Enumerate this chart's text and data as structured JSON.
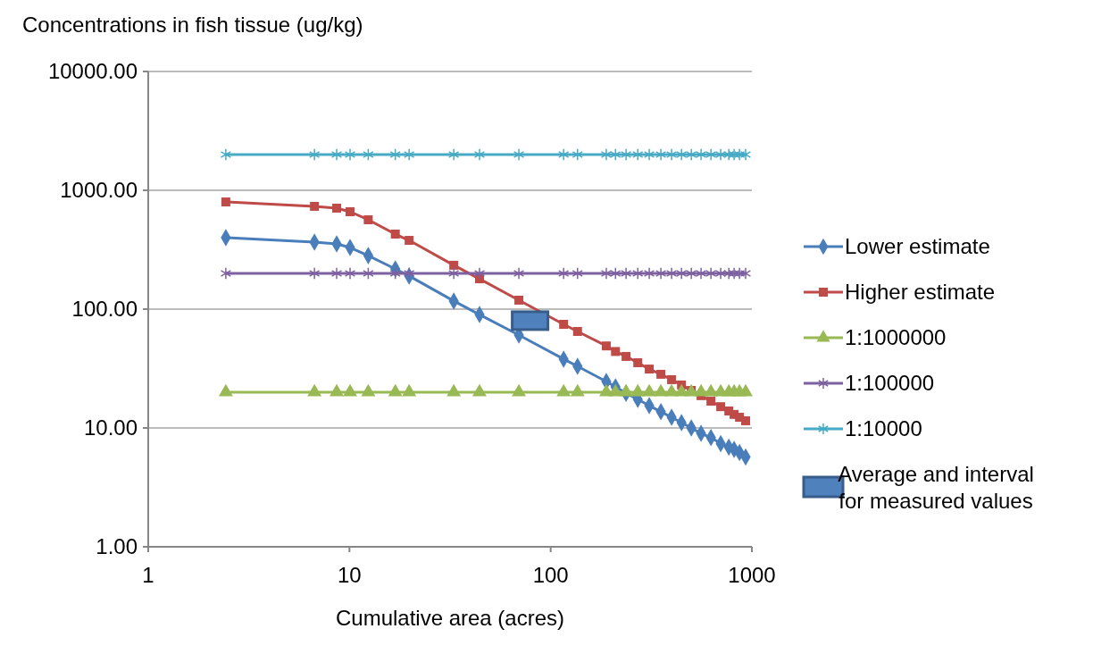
{
  "chart_data": {
    "type": "line",
    "ylabel": "Concentrations in fish tissue (ug/kg)",
    "xlabel": "Cumulative area (acres)",
    "x": [
      2.43,
      6.7,
      8.64,
      10.07,
      12.4,
      16.9,
      19.8,
      33,
      44.3,
      69.5,
      116,
      136,
      189,
      210,
      237,
      271,
      309,
      353,
      399,
      447,
      500,
      559,
      626,
      700,
      768,
      816,
      868,
      931
    ],
    "series": [
      {
        "name": "Lower estimate",
        "color": "#4a7ebb",
        "marker": "diamond",
        "values": [
          400,
          366,
          354,
          330,
          282,
          218,
          190,
          117,
          90,
          60.5,
          38,
          33,
          24.6,
          22.2,
          19.6,
          17.4,
          15.4,
          13.7,
          12.3,
          11.1,
          10,
          9,
          8.3,
          7.4,
          6.9,
          6.6,
          6.2,
          5.7
        ]
      },
      {
        "name": "Higher estimate",
        "color": "#be4b48",
        "marker": "square",
        "values": [
          798,
          733,
          708,
          660,
          565,
          428,
          379,
          234,
          180,
          119,
          74.5,
          64.9,
          49,
          44,
          40,
          35.4,
          31.3,
          28.3,
          25.5,
          23,
          20.7,
          18.7,
          16.8,
          15.1,
          13.9,
          13,
          12.3,
          11.5
        ]
      },
      {
        "name": "1:1000000",
        "color": "#98b954",
        "marker": "triangle",
        "values": [
          20,
          20,
          20,
          20,
          20,
          20,
          20,
          20,
          20,
          20,
          20,
          20,
          20,
          20,
          20,
          20,
          20,
          20,
          20,
          20,
          20,
          20,
          20,
          20,
          20,
          20,
          20,
          20
        ]
      },
      {
        "name": "1:100000",
        "color": "#7d60a0",
        "marker": "cross",
        "values": [
          200,
          200,
          200,
          200,
          200,
          200,
          200,
          200,
          200,
          200,
          200,
          200,
          200,
          200,
          200,
          200,
          200,
          200,
          200,
          200,
          200,
          200,
          200,
          200,
          200,
          200,
          200,
          200
        ]
      },
      {
        "name": "1:10000",
        "color": "#46aac5",
        "marker": "cross",
        "values": [
          2000,
          2000,
          2000,
          2000,
          2000,
          2000,
          2000,
          2000,
          2000,
          2000,
          2000,
          2000,
          2000,
          2000,
          2000,
          2000,
          2000,
          2000,
          2000,
          2000,
          2000,
          2000,
          2000,
          2000,
          2000,
          2000,
          2000,
          2000
        ]
      },
      {
        "name": "Average and interval for measured values",
        "type": "scatter",
        "color": "#4f81bd",
        "marker": "square",
        "x": [
          79
        ],
        "values": [
          80
        ]
      }
    ],
    "xlim": [
      1,
      1000
    ],
    "xticks": [
      1,
      10,
      100,
      1000
    ],
    "ylim": [
      1,
      10000
    ],
    "yticks": [
      {
        "value": 1,
        "label": "1.00"
      },
      {
        "value": 10,
        "label": "10.00"
      },
      {
        "value": 100,
        "label": "100.00"
      },
      {
        "value": 1000,
        "label": "1000.00"
      },
      {
        "value": 10000,
        "label": "10000.00"
      }
    ],
    "log": "xy",
    "grid": "y",
    "legend": "right",
    "line_style": "solid"
  }
}
